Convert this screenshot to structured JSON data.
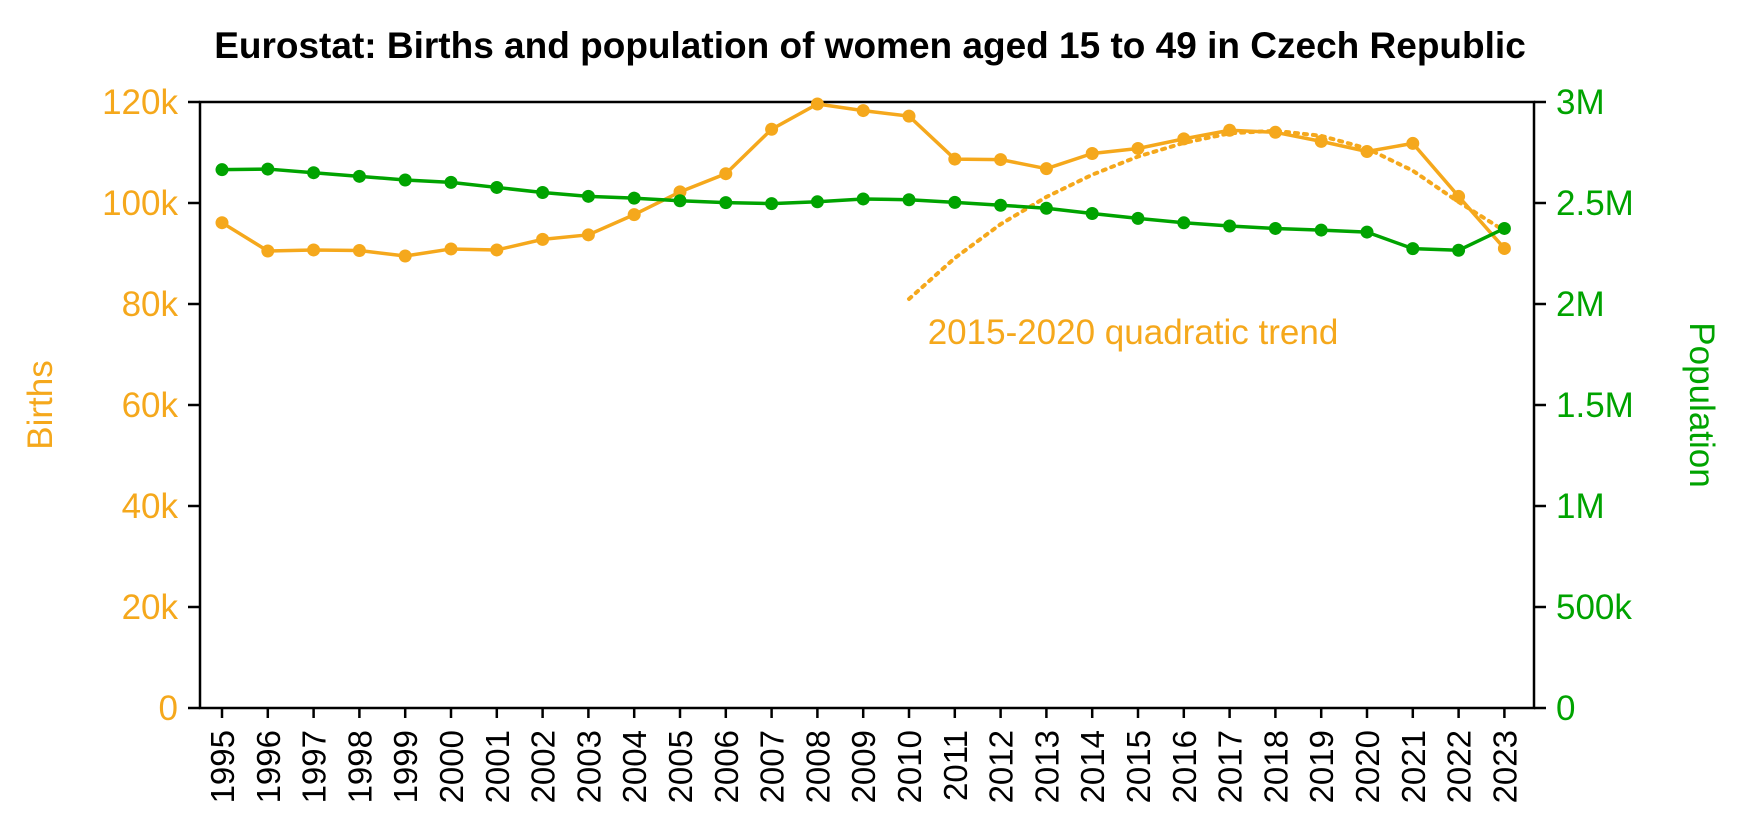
{
  "chart_data": {
    "type": "line",
    "title": "Eurostat: Births and population of women aged 15 to 49 in Czech Republic",
    "x": [
      "1995",
      "1996",
      "1997",
      "1998",
      "1999",
      "2000",
      "2001",
      "2002",
      "2003",
      "2004",
      "2005",
      "2006",
      "2007",
      "2008",
      "2009",
      "2010",
      "2011",
      "2012",
      "2013",
      "2014",
      "2015",
      "2016",
      "2017",
      "2018",
      "2019",
      "2020",
      "2021",
      "2022",
      "2023"
    ],
    "ylabel_left": "Births",
    "ylabel_right": "Population",
    "ylim_left": [
      0,
      120000
    ],
    "ylim_right": [
      0,
      3000000
    ],
    "yticks_left": [
      "0",
      "20k",
      "40k",
      "60k",
      "80k",
      "100k",
      "120k"
    ],
    "yticks_right": [
      "0",
      "500k",
      "1M",
      "1.5M",
      "2M",
      "2.5M",
      "3M"
    ],
    "grid": false,
    "colors": {
      "births": "#F5A81C",
      "population": "#00A300"
    },
    "series": [
      {
        "name": "Births",
        "axis": "left",
        "color": "#F5A81C",
        "values": [
          96100,
          90500,
          90700,
          90600,
          89500,
          90900,
          90700,
          92800,
          93700,
          97700,
          102200,
          105800,
          114600,
          119600,
          118300,
          117200,
          108700,
          108600,
          106800,
          109800,
          110800,
          112700,
          114400,
          114000,
          112200,
          110200,
          111800,
          101300,
          91000
        ]
      },
      {
        "name": "Population",
        "axis": "right",
        "color": "#00A300",
        "values": [
          2665000,
          2668000,
          2650000,
          2632000,
          2614000,
          2602000,
          2577000,
          2552000,
          2533000,
          2524000,
          2511000,
          2502000,
          2497000,
          2506000,
          2520000,
          2516000,
          2503000,
          2489000,
          2474000,
          2448000,
          2424000,
          2402000,
          2386000,
          2374000,
          2366000,
          2356000,
          2274000,
          2266000,
          2374000
        ]
      }
    ],
    "trend": {
      "label": "2015-2020 quadratic trend",
      "axis": "left",
      "color": "#F5A81C",
      "style": "dotted",
      "x": [
        2010,
        2011,
        2012,
        2013,
        2014,
        2015,
        2016,
        2017,
        2018,
        2019,
        2020,
        2021,
        2022,
        2023
      ],
      "values": [
        81000,
        89100,
        95800,
        101200,
        105600,
        109200,
        111900,
        113800,
        114300,
        113300,
        110800,
        106400,
        100200,
        94500
      ]
    }
  }
}
